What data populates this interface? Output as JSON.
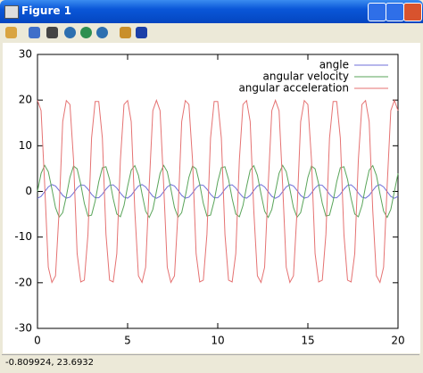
{
  "window": {
    "title": "Figure 1",
    "status": "-0.809924, 23.6932"
  },
  "chart_data": {
    "type": "line",
    "x": [
      0,
      0.2,
      0.4,
      0.6,
      0.8,
      1,
      1.2,
      1.4,
      1.6,
      1.8,
      2,
      2.2,
      2.4,
      2.6,
      2.8,
      3,
      3.2,
      3.4,
      3.6,
      3.8,
      4,
      4.2,
      4.4,
      4.6,
      4.8,
      5,
      5.2,
      5.4,
      5.6,
      5.8,
      6,
      6.2,
      6.4,
      6.6,
      6.8,
      7,
      7.2,
      7.4,
      7.6,
      7.8,
      8,
      8.2,
      8.4,
      8.6,
      8.8,
      9,
      9.2,
      9.4,
      9.6,
      9.8,
      10,
      10.2,
      10.4,
      10.6,
      10.8,
      11,
      11.2,
      11.4,
      11.6,
      11.8,
      12,
      12.2,
      12.4,
      12.6,
      12.8,
      13,
      13.2,
      13.4,
      13.6,
      13.8,
      14,
      14.2,
      14.4,
      14.6,
      14.8,
      15,
      15.2,
      15.4,
      15.6,
      15.8,
      16,
      16.2,
      16.4,
      16.6,
      16.8,
      17,
      17.2,
      17.4,
      17.6,
      17.8,
      18,
      18.2,
      18.4,
      18.6,
      18.8,
      19,
      19.2,
      19.4,
      19.6,
      19.8,
      20
    ],
    "series": [
      {
        "name": "angle",
        "color": "#6f6fd8",
        "values": [
          -1.5,
          -1.086,
          -0.071,
          0.981,
          1.493,
          1.18,
          0.213,
          -0.871,
          -1.473,
          -1.262,
          -0.354,
          0.75,
          1.441,
          1.333,
          0.491,
          -0.623,
          -1.393,
          -1.393,
          -0.623,
          0.491,
          1.333,
          1.441,
          0.75,
          -0.354,
          -1.262,
          -1.473,
          -0.871,
          0.213,
          1.18,
          1.493,
          0.981,
          -0.071,
          -1.086,
          -1.5,
          -1.086,
          -0.071,
          0.981,
          1.493,
          1.18,
          0.213,
          -0.871,
          -1.473,
          -1.262,
          -0.354,
          0.75,
          1.441,
          1.333,
          0.491,
          -0.623,
          -1.393,
          -1.393,
          -0.623,
          0.491,
          1.333,
          1.441,
          0.75,
          -0.354,
          -1.262,
          -1.473,
          -0.871,
          0.213,
          1.18,
          1.493,
          0.981,
          -0.071,
          -1.086,
          -1.5,
          -1.086,
          -0.071,
          0.981,
          1.493,
          1.18,
          0.213,
          -0.871,
          -1.473,
          -1.262,
          -0.354,
          0.75,
          1.441,
          1.333,
          0.491,
          -0.623,
          -1.393,
          -1.393,
          -0.623,
          0.491,
          1.333,
          1.441,
          0.75,
          -0.354,
          -1.262,
          -1.473,
          -0.871,
          0.213,
          1.18,
          1.493,
          0.981,
          -0.071,
          -1.086,
          -1.5,
          -1.086
        ]
      },
      {
        "name": "angular velocity",
        "color": "#5aa55a",
        "values": [
          0,
          3.94,
          5.7,
          4.32,
          0.54,
          -3.53,
          -5.65,
          -4.65,
          -1.08,
          3.09,
          5.55,
          4.94,
          1.59,
          -2.62,
          -5.4,
          -5.19,
          -2.12,
          2.12,
          5.19,
          5.4,
          2.62,
          -1.59,
          -4.94,
          -5.55,
          -3.09,
          1.08,
          4.65,
          5.65,
          3.53,
          -0.54,
          -4.32,
          -5.7,
          -3.94,
          0,
          3.94,
          5.7,
          4.32,
          0.54,
          -3.53,
          -5.65,
          -4.65,
          -1.08,
          3.09,
          5.55,
          4.94,
          1.59,
          -2.62,
          -5.4,
          -5.19,
          -2.12,
          2.12,
          5.19,
          5.4,
          2.62,
          -1.59,
          -4.94,
          -5.55,
          -3.09,
          1.08,
          4.65,
          5.65,
          3.53,
          -0.54,
          -4.32,
          -5.7,
          -3.94,
          0,
          3.94,
          5.7,
          4.32,
          0.54,
          -3.53,
          -5.65,
          -4.65,
          -1.08,
          3.09,
          5.55,
          4.94,
          1.59,
          -2.62,
          -5.4,
          -5.19,
          -2.12,
          2.12,
          5.19,
          5.4,
          2.62,
          -1.59,
          -4.94,
          -5.55,
          -3.09,
          1.08,
          4.65,
          5.65,
          3.53,
          -0.54,
          -4.32,
          -5.7,
          -3.94,
          0,
          3.94
        ]
      },
      {
        "name": "angular acceleration",
        "color": "#e57272",
        "values": [
          19.95,
          17.69,
          1.43,
          -16.61,
          -19.94,
          -18.49,
          -4.24,
          15.29,
          19.9,
          19.05,
          6.93,
          -13.63,
          -19.83,
          -19.44,
          -9.42,
          11.67,
          19.68,
          19.68,
          11.67,
          -9.42,
          -19.44,
          -19.83,
          -13.63,
          6.93,
          19.05,
          19.9,
          15.29,
          -4.24,
          -18.49,
          -19.94,
          -16.61,
          1.43,
          17.69,
          19.95,
          17.69,
          1.43,
          -16.61,
          -19.94,
          -18.49,
          -4.24,
          15.29,
          19.9,
          19.05,
          6.93,
          -13.63,
          -19.83,
          -19.44,
          -9.42,
          11.67,
          19.68,
          19.68,
          11.67,
          -9.42,
          -19.44,
          -19.83,
          -13.63,
          6.93,
          19.05,
          19.9,
          15.29,
          -4.24,
          -18.49,
          -19.94,
          -16.61,
          1.43,
          17.69,
          19.95,
          17.69,
          1.43,
          -16.61,
          -19.94,
          -18.49,
          -4.24,
          15.29,
          19.9,
          19.05,
          6.93,
          -13.63,
          -19.83,
          -19.44,
          -9.42,
          11.67,
          19.68,
          19.68,
          11.67,
          -9.42,
          -19.44,
          -19.83,
          -13.63,
          6.93,
          19.05,
          19.9,
          15.29,
          -4.24,
          -18.49,
          -19.94,
          -16.61,
          1.43,
          17.69,
          19.95,
          17.69
        ]
      }
    ],
    "xlim": [
      0,
      20
    ],
    "xticks": [
      0,
      5,
      10,
      15,
      20
    ],
    "ylim": [
      -30,
      30
    ],
    "yticks": [
      -30,
      -20,
      -10,
      0,
      10,
      20,
      30
    ],
    "legend": "top-right"
  }
}
